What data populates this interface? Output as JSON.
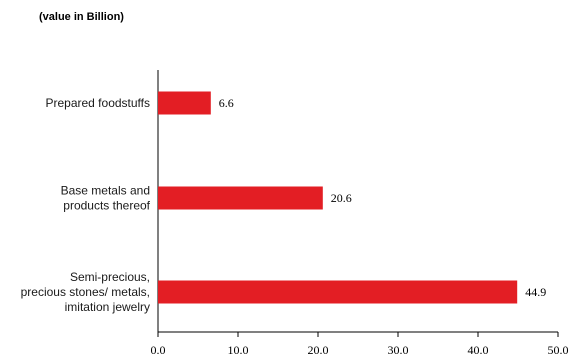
{
  "chart_data": {
    "type": "bar",
    "orientation": "horizontal",
    "unit_label": "(value in Billion)",
    "categories": [
      [
        "Prepared foodstuffs"
      ],
      [
        "Base metals and",
        "products thereof"
      ],
      [
        "Semi-precious,",
        "precious stones/ metals,",
        "imitation jewelry"
      ]
    ],
    "values": [
      6.6,
      20.6,
      44.9
    ],
    "value_labels": [
      "6.6",
      "20.6",
      "44.9"
    ],
    "xlim": [
      0,
      50
    ],
    "x_ticks": [
      "0.0",
      "10.0",
      "20.0",
      "30.0",
      "40.0",
      "50.0"
    ],
    "bar_color": "#e31e24",
    "axis_color": "#000000",
    "grid": false,
    "legend": "none"
  }
}
